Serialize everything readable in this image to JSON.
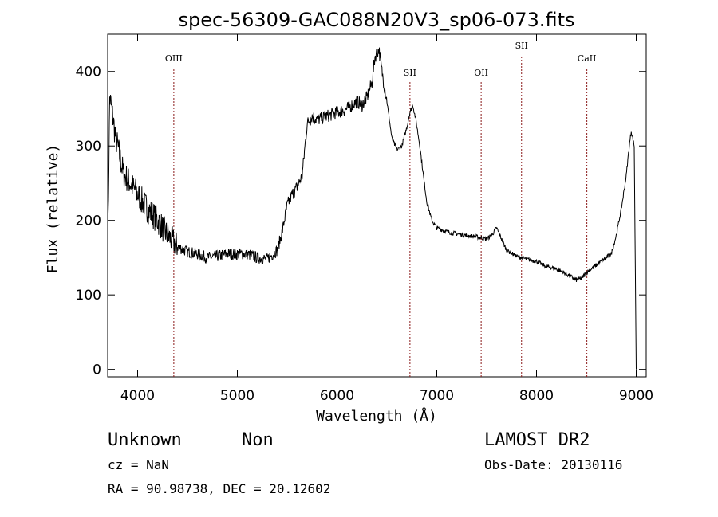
{
  "chart_data": {
    "type": "line",
    "title": "spec-56309-GAC088N20V3_sp06-073.fits",
    "xlabel": "Wavelength (Å)",
    "ylabel": "Flux (relative)",
    "xlim": [
      3700,
      9100
    ],
    "ylim": [
      -10,
      450
    ],
    "x_ticks": [
      4000,
      5000,
      6000,
      7000,
      8000,
      9000
    ],
    "y_ticks": [
      0,
      100,
      200,
      300,
      400
    ],
    "grid": false,
    "series": [
      {
        "color": "#000000",
        "x": [
          3700,
          3720,
          3740,
          3760,
          3780,
          3800,
          3830,
          3860,
          3900,
          3950,
          4000,
          4050,
          4100,
          4150,
          4200,
          4250,
          4300,
          4400,
          4500,
          4600,
          4700,
          4800,
          4900,
          5000,
          5100,
          5200,
          5300,
          5400,
          5450,
          5500,
          5550,
          5600,
          5650,
          5700,
          5750,
          5800,
          5900,
          6000,
          6100,
          6200,
          6250,
          6300,
          6350,
          6380,
          6420,
          6450,
          6500,
          6550,
          6600,
          6650,
          6700,
          6730,
          6760,
          6790,
          6830,
          6870,
          6900,
          6950,
          7000,
          7100,
          7200,
          7300,
          7400,
          7500,
          7550,
          7600,
          7650,
          7700,
          7800,
          7900,
          8000,
          8100,
          8200,
          8300,
          8400,
          8450,
          8500,
          8550,
          8600,
          8650,
          8700,
          8750,
          8800,
          8850,
          8900,
          8930,
          8950,
          8980,
          9000
        ],
        "values": [
          150,
          365,
          350,
          330,
          310,
          300,
          280,
          262,
          255,
          245,
          235,
          225,
          215,
          208,
          200,
          190,
          180,
          165,
          158,
          155,
          150,
          152,
          155,
          155,
          155,
          150,
          148,
          160,
          185,
          220,
          235,
          245,
          260,
          330,
          340,
          335,
          340,
          345,
          350,
          360,
          355,
          365,
          385,
          420,
          430,
          400,
          360,
          310,
          295,
          300,
          325,
          345,
          355,
          335,
          300,
          255,
          225,
          200,
          190,
          185,
          182,
          180,
          178,
          175,
          180,
          190,
          175,
          160,
          152,
          148,
          145,
          138,
          135,
          128,
          120,
          122,
          130,
          135,
          140,
          145,
          150,
          155,
          180,
          215,
          260,
          300,
          320,
          300,
          0
        ]
      }
    ],
    "annotations": [
      {
        "label": "OIII",
        "x": 4363
      },
      {
        "label": "SII",
        "x": 6731
      },
      {
        "label": "OII",
        "x": 7445
      },
      {
        "label": "SII",
        "x": 7850
      },
      {
        "label": "CaII",
        "x": 8505
      }
    ]
  },
  "info": {
    "object_class": "Unknown",
    "subclass": "Non",
    "survey": "LAMOST DR2",
    "cz": "cz = NaN",
    "obs_date": "Obs-Date: 20130116",
    "coords": "RA =  90.98738, DEC =  20.12602"
  }
}
